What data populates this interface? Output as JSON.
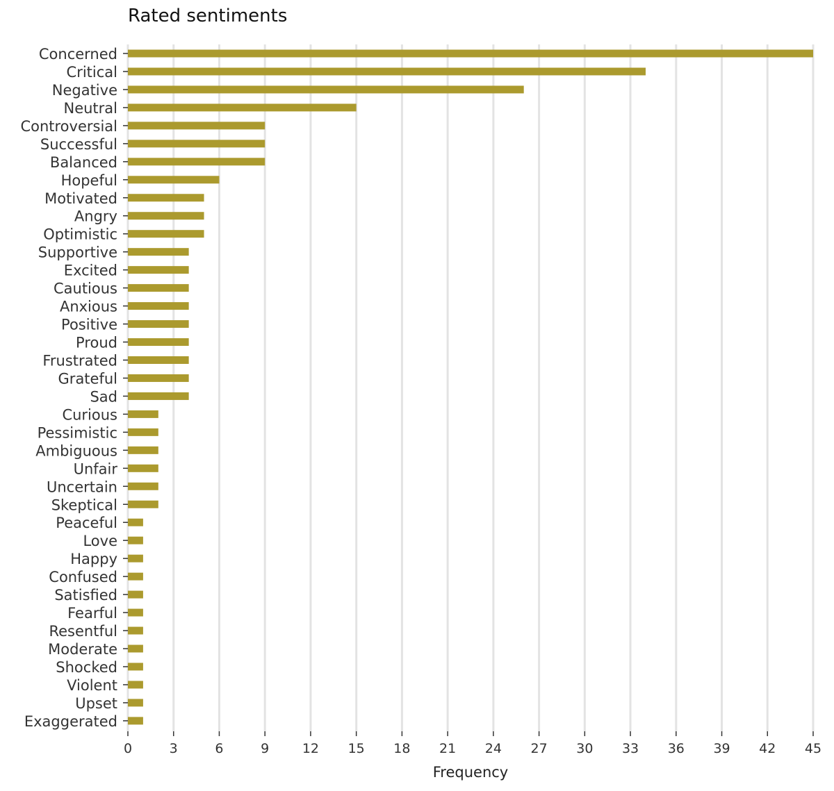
{
  "chart_data": {
    "type": "bar",
    "orientation": "horizontal",
    "title": "Rated sentiments",
    "xlabel": "Frequency",
    "ylabel": "",
    "xlim": [
      0,
      45
    ],
    "xticks": [
      0,
      3,
      6,
      9,
      12,
      15,
      18,
      21,
      24,
      27,
      30,
      33,
      36,
      39,
      42,
      45
    ],
    "grid": "vertical",
    "bar_color": "#ab9a2e",
    "grid_color": "#e3e3e3",
    "categories": [
      "Concerned",
      "Critical",
      "Negative",
      "Neutral",
      "Controversial",
      "Successful",
      "Balanced",
      "Hopeful",
      "Motivated",
      "Angry",
      "Optimistic",
      "Supportive",
      "Excited",
      "Cautious",
      "Anxious",
      "Positive",
      "Proud",
      "Frustrated",
      "Grateful",
      "Sad",
      "Curious",
      "Pessimistic",
      "Ambiguous",
      "Unfair",
      "Uncertain",
      "Skeptical",
      "Peaceful",
      "Love",
      "Happy",
      "Confused",
      "Satisfied",
      "Fearful",
      "Resentful",
      "Moderate",
      "Shocked",
      "Violent",
      "Upset",
      "Exaggerated"
    ],
    "values": [
      45,
      34,
      26,
      15,
      9,
      9,
      9,
      6,
      5,
      5,
      5,
      4,
      4,
      4,
      4,
      4,
      4,
      4,
      4,
      4,
      2,
      2,
      2,
      2,
      2,
      2,
      1,
      1,
      1,
      1,
      1,
      1,
      1,
      1,
      1,
      1,
      1,
      1
    ]
  }
}
